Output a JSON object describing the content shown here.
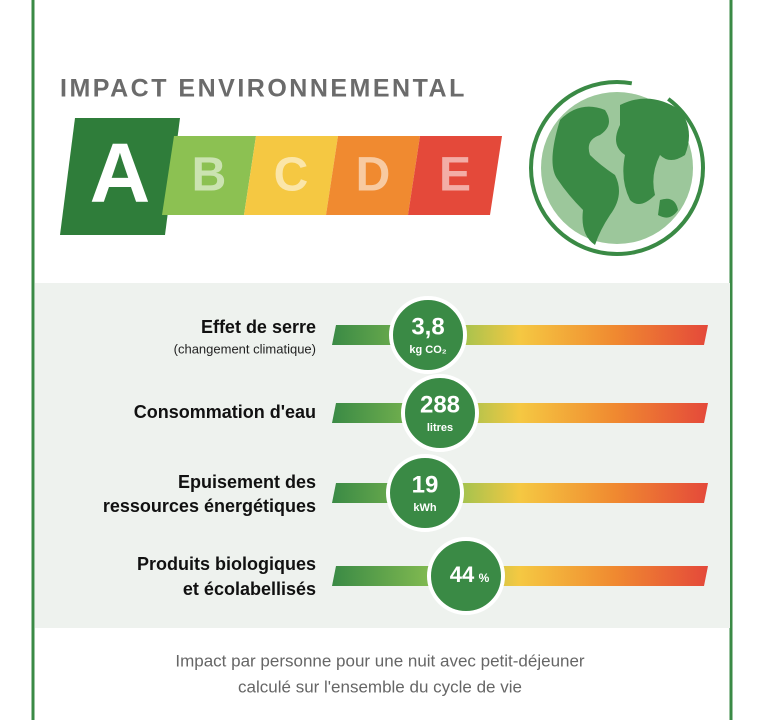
{
  "header": {
    "title": "IMPACT ENVIRONNEMENTAL"
  },
  "grades": [
    "A",
    "B",
    "C",
    "D",
    "E"
  ],
  "indicators": [
    {
      "label": [
        "Effet de serre"
      ],
      "sublabel": "(changement climatique)",
      "value": "3,8",
      "unit": "kg CO₂"
    },
    {
      "label": [
        "Consommation d'eau"
      ],
      "value": "288",
      "unit": "litres"
    },
    {
      "label": [
        "Epuisement des",
        "ressources énergétiques"
      ],
      "value": "19",
      "unit": "kWh"
    },
    {
      "label": [
        "Produits biologiques",
        "et écolabellisés"
      ],
      "value": "44",
      "unit": "%"
    }
  ],
  "footer": [
    "Impact par personne pour une nuit avec petit-déjeuner",
    "calculé sur l'ensemble du cycle de vie"
  ]
}
